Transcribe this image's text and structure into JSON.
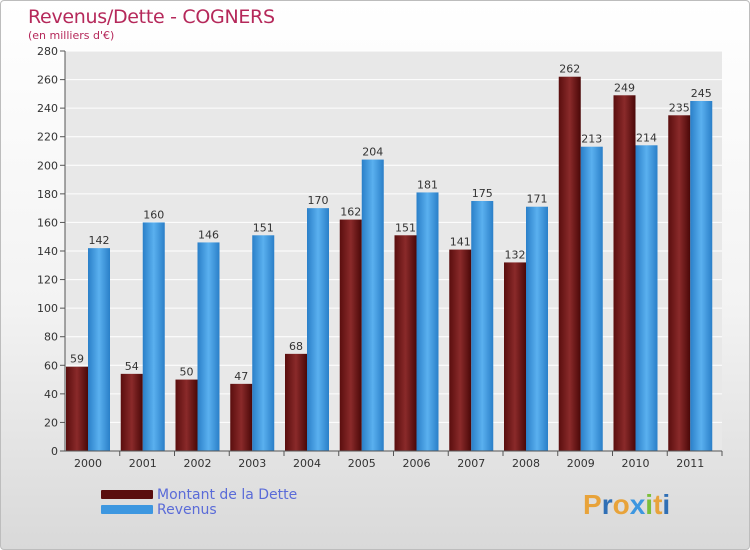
{
  "title": "Revenus/Dette - COGNERS",
  "subtitle": "(en milliers d'€)",
  "colors": {
    "dette": "#7b1a1a",
    "revenus": "#3d97e0",
    "title": "#b5285a",
    "legend_text": "#5a6bd8"
  },
  "legend": [
    {
      "label": "Montant de la Dette",
      "color": "#5a0e0e"
    },
    {
      "label": "Revenus",
      "color": "#3d97e0"
    }
  ],
  "logo": {
    "letters": [
      "P",
      "r",
      "o",
      "x",
      "i",
      "t",
      "i"
    ],
    "colors": [
      "#e8a33a",
      "#2f6fb5",
      "#e8a33a",
      "#3d97e0",
      "#7bbf3a",
      "#e8a33a",
      "#2f6fb5"
    ]
  },
  "chart_data": {
    "type": "bar",
    "title": "Revenus/Dette - COGNERS",
    "ylabel": "(en milliers d'€)",
    "categories": [
      "2000",
      "2001",
      "2002",
      "2003",
      "2004",
      "2005",
      "2006",
      "2007",
      "2008",
      "2009",
      "2010",
      "2011"
    ],
    "series": [
      {
        "name": "Montant de la Dette",
        "values": [
          59,
          54,
          50,
          47,
          68,
          162,
          151,
          141,
          132,
          262,
          249,
          235
        ]
      },
      {
        "name": "Revenus",
        "values": [
          142,
          160,
          146,
          151,
          170,
          204,
          181,
          175,
          171,
          213,
          214,
          245
        ]
      }
    ],
    "ylim": [
      0,
      280
    ],
    "yticks": [
      0,
      20,
      40,
      60,
      80,
      100,
      120,
      140,
      160,
      180,
      200,
      220,
      240,
      260,
      280
    ],
    "grid": true,
    "legend_position": "bottom-left"
  }
}
